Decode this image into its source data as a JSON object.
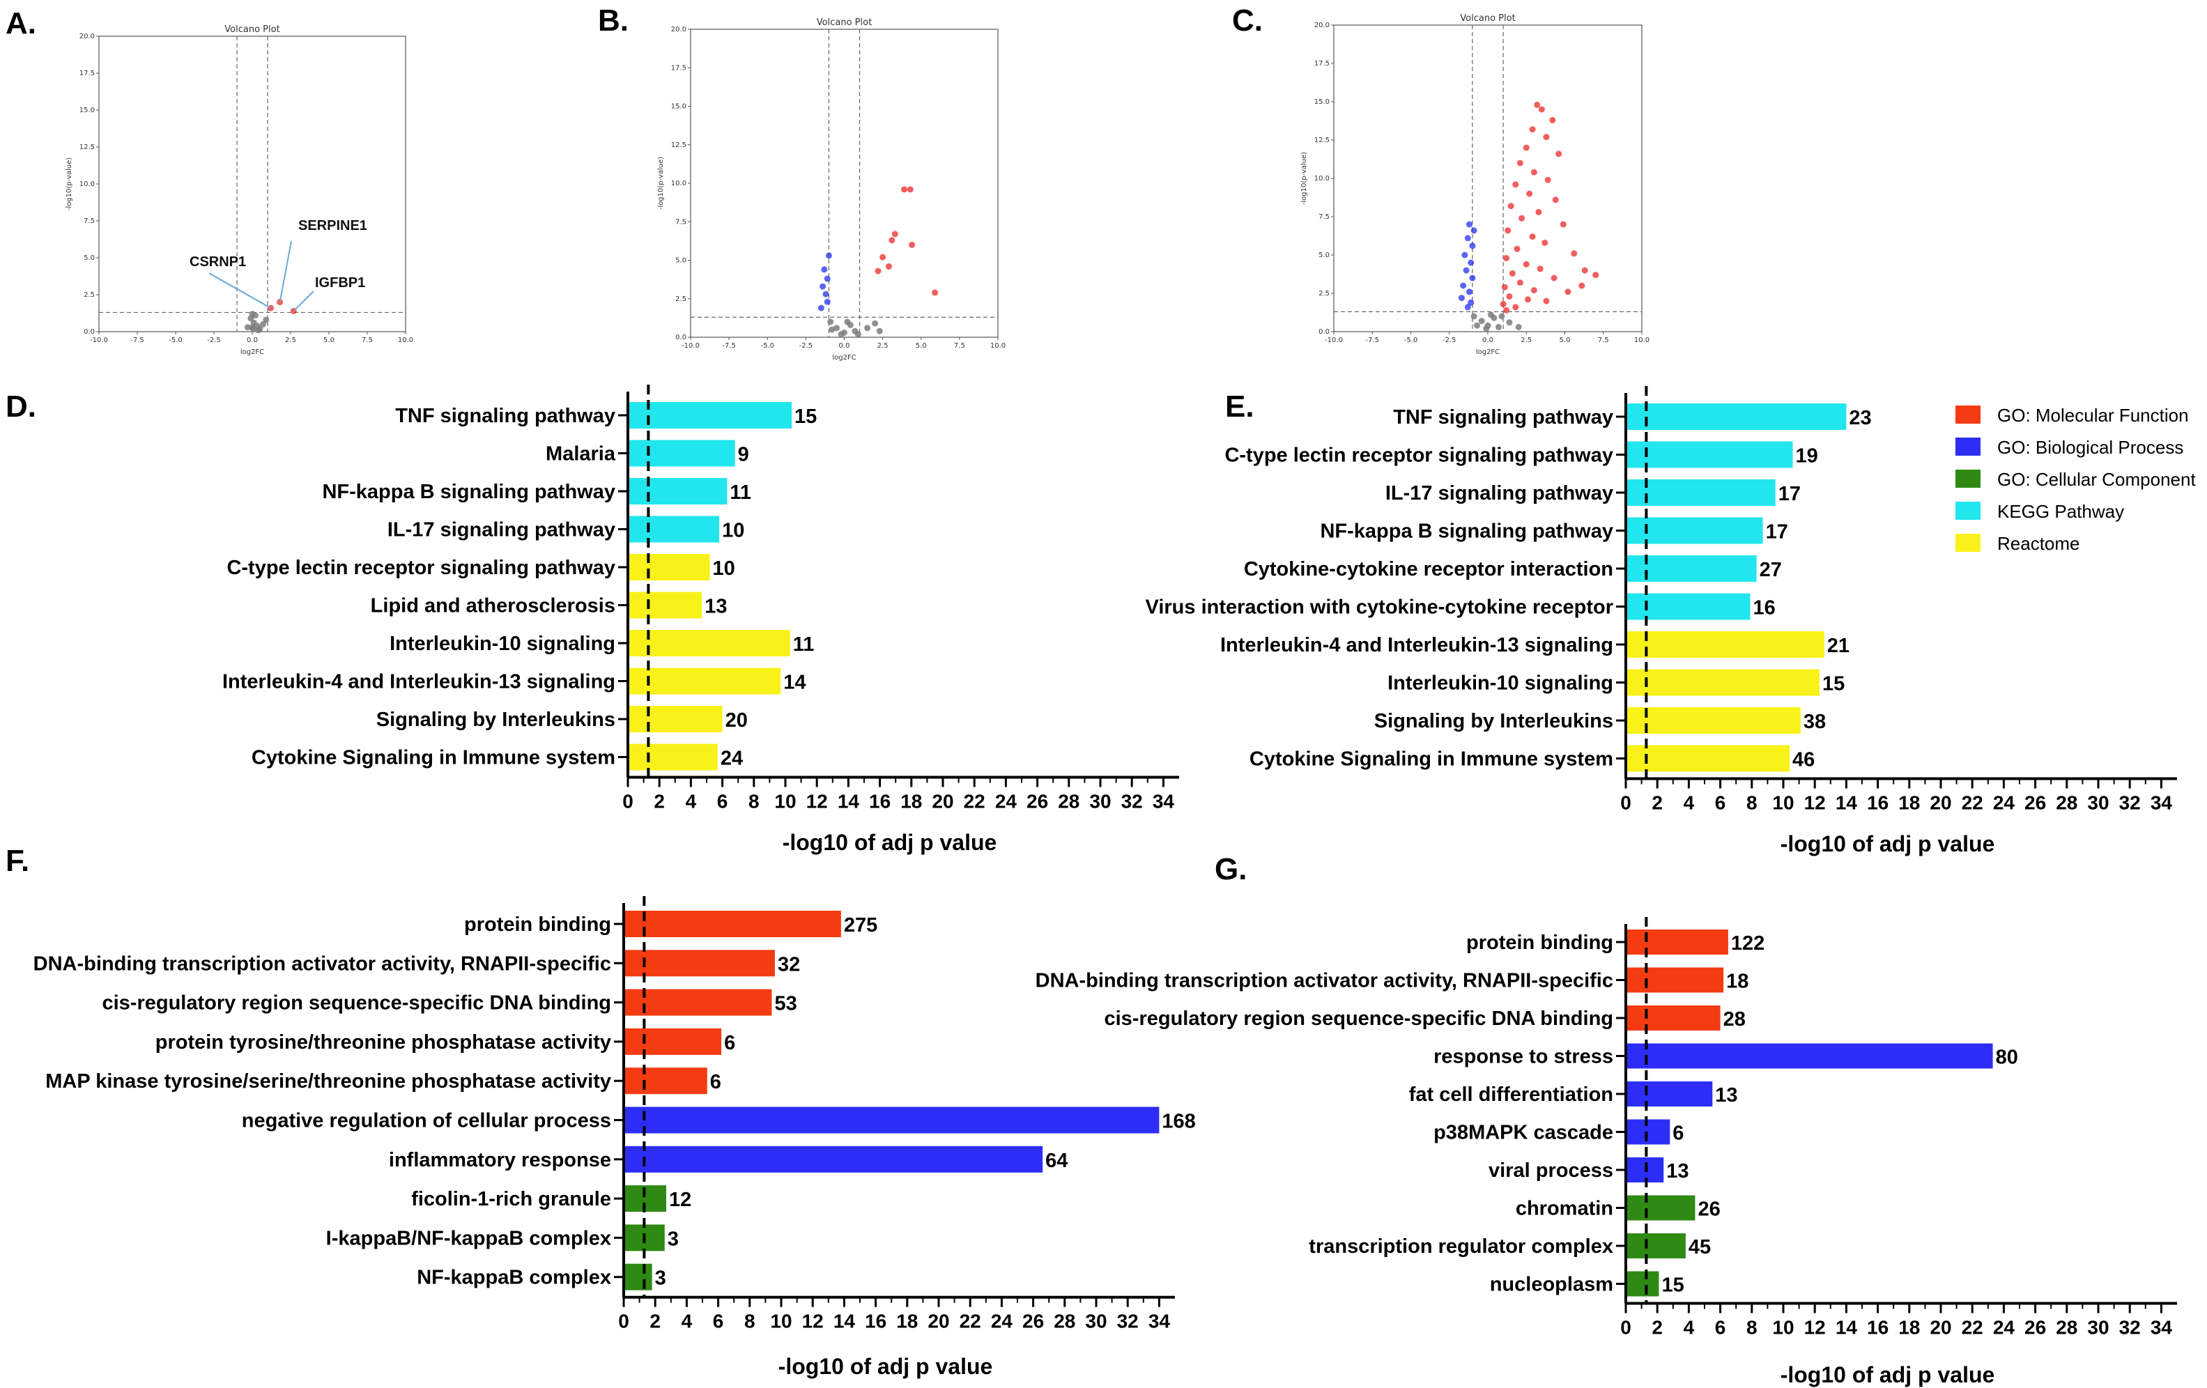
{
  "colors": {
    "mf": "#f43b12",
    "bp": "#2d2ef5",
    "cc": "#2e8a12",
    "kegg": "#22e6ee",
    "reactome": "#f8f21a",
    "down_point": "#2430ee",
    "up_point": "#ee2828",
    "ns_point": "#7c7c7c"
  },
  "legend": [
    {
      "key": "mf",
      "label": "GO: Molecular Function"
    },
    {
      "key": "bp",
      "label": "GO: Biological Process"
    },
    {
      "key": "cc",
      "label": "GO: Cellular Component"
    },
    {
      "key": "kegg",
      "label": "KEGG Pathway"
    },
    {
      "key": "reactome",
      "label": "Reactome"
    }
  ],
  "chart_data": [
    {
      "id": "A",
      "panel_label": "A.",
      "type": "scatter",
      "title": "Volcano Plot",
      "xlabel": "log2FC",
      "ylabel": "-log10(p-value)",
      "xlim": [
        -10,
        10
      ],
      "ylim": [
        0,
        20
      ],
      "xticks": [
        "-10.0",
        "-7.5",
        "-5.0",
        "-2.5",
        "0.0",
        "2.5",
        "5.0",
        "7.5",
        "10.0"
      ],
      "yticks": [
        "0.0",
        "2.5",
        "5.0",
        "7.5",
        "10.0",
        "12.5",
        "15.0",
        "17.5",
        "20.0"
      ],
      "vlines": [
        -1,
        1
      ],
      "hline": 1.3,
      "annotations": [
        {
          "label": "CSRNP1",
          "x": 1.2,
          "y": 1.6
        },
        {
          "label": "SERPINE1",
          "x": 1.8,
          "y": 2.0
        },
        {
          "label": "IGFBP1",
          "x": 2.7,
          "y": 1.4
        }
      ],
      "up": [
        {
          "x": 1.2,
          "y": 1.6
        },
        {
          "x": 1.8,
          "y": 2.0
        },
        {
          "x": 2.7,
          "y": 1.4
        }
      ],
      "down": [],
      "ns": [
        {
          "x": 0.0,
          "y": 0.3
        },
        {
          "x": 0.1,
          "y": 0.6
        },
        {
          "x": -0.1,
          "y": 0.9
        },
        {
          "x": 0.0,
          "y": 1.2
        },
        {
          "x": 0.05,
          "y": 0.2
        },
        {
          "x": 0.3,
          "y": 0.4
        },
        {
          "x": 0.5,
          "y": 0.2
        },
        {
          "x": 0.7,
          "y": 0.5
        },
        {
          "x": -0.3,
          "y": 0.3
        },
        {
          "x": 0.9,
          "y": 0.8
        },
        {
          "x": 0.4,
          "y": 0.1
        },
        {
          "x": 0.2,
          "y": 1.1
        }
      ]
    },
    {
      "id": "B",
      "panel_label": "B.",
      "type": "scatter",
      "title": "Volcano Plot",
      "xlabel": "log2FC",
      "ylabel": "-log10(p-value)",
      "xlim": [
        -10,
        10
      ],
      "ylim": [
        0,
        20
      ],
      "xticks": [
        "-10.0",
        "-7.5",
        "-5.0",
        "-2.5",
        "0.0",
        "2.5",
        "5.0",
        "7.5",
        "10.0"
      ],
      "yticks": [
        "0.0",
        "2.5",
        "5.0",
        "7.5",
        "10.0",
        "12.5",
        "15.0",
        "17.5",
        "20.0"
      ],
      "vlines": [
        -1,
        1
      ],
      "hline": 1.3,
      "annotations": [],
      "up": [
        {
          "x": 3.9,
          "y": 9.6
        },
        {
          "x": 4.3,
          "y": 9.6
        },
        {
          "x": 3.3,
          "y": 6.7
        },
        {
          "x": 3.1,
          "y": 6.3
        },
        {
          "x": 4.4,
          "y": 6.0
        },
        {
          "x": 5.9,
          "y": 2.9
        },
        {
          "x": 2.5,
          "y": 5.2
        },
        {
          "x": 2.9,
          "y": 4.6
        },
        {
          "x": 2.2,
          "y": 4.3
        }
      ],
      "down": [
        {
          "x": -1.0,
          "y": 5.3
        },
        {
          "x": -1.3,
          "y": 4.4
        },
        {
          "x": -1.1,
          "y": 3.8
        },
        {
          "x": -1.4,
          "y": 3.3
        },
        {
          "x": -1.2,
          "y": 2.8
        },
        {
          "x": -1.1,
          "y": 2.3
        },
        {
          "x": -1.5,
          "y": 1.9
        }
      ],
      "ns": [
        {
          "x": 0.0,
          "y": 0.3
        },
        {
          "x": -0.5,
          "y": 0.6
        },
        {
          "x": 0.4,
          "y": 0.8
        },
        {
          "x": 0.7,
          "y": 0.4
        },
        {
          "x": -0.8,
          "y": 0.5
        },
        {
          "x": 0.2,
          "y": 1.0
        },
        {
          "x": 1.5,
          "y": 0.6
        },
        {
          "x": 2.3,
          "y": 0.4
        },
        {
          "x": 2.0,
          "y": 0.9
        },
        {
          "x": -0.2,
          "y": 0.2
        },
        {
          "x": 0.9,
          "y": 0.2
        },
        {
          "x": -0.9,
          "y": 1.0
        }
      ]
    },
    {
      "id": "C",
      "panel_label": "C.",
      "type": "scatter",
      "title": "Volcano Plot",
      "xlabel": "log2FC",
      "ylabel": "-log10(p-value)",
      "xlim": [
        -10,
        10
      ],
      "ylim": [
        0,
        20
      ],
      "xticks": [
        "-10.0",
        "-7.5",
        "-5.0",
        "-2.5",
        "0.0",
        "2.5",
        "5.0",
        "7.5",
        "10.0"
      ],
      "yticks": [
        "0.0",
        "2.5",
        "5.0",
        "7.5",
        "10.0",
        "12.5",
        "15.0",
        "17.5",
        "20.0"
      ],
      "vlines": [
        -1,
        1
      ],
      "hline": 1.3,
      "annotations": [],
      "up": [
        {
          "x": 3.2,
          "y": 14.8
        },
        {
          "x": 3.5,
          "y": 14.5
        },
        {
          "x": 4.2,
          "y": 13.8
        },
        {
          "x": 2.9,
          "y": 13.2
        },
        {
          "x": 3.8,
          "y": 12.7
        },
        {
          "x": 2.5,
          "y": 12.0
        },
        {
          "x": 4.6,
          "y": 11.6
        },
        {
          "x": 2.1,
          "y": 11.0
        },
        {
          "x": 3.0,
          "y": 10.4
        },
        {
          "x": 3.9,
          "y": 9.9
        },
        {
          "x": 1.8,
          "y": 9.6
        },
        {
          "x": 2.7,
          "y": 9.0
        },
        {
          "x": 4.4,
          "y": 8.6
        },
        {
          "x": 1.5,
          "y": 8.2
        },
        {
          "x": 3.3,
          "y": 7.8
        },
        {
          "x": 2.2,
          "y": 7.4
        },
        {
          "x": 4.9,
          "y": 7.0
        },
        {
          "x": 1.3,
          "y": 6.6
        },
        {
          "x": 2.9,
          "y": 6.2
        },
        {
          "x": 3.7,
          "y": 5.8
        },
        {
          "x": 1.9,
          "y": 5.4
        },
        {
          "x": 5.6,
          "y": 5.1
        },
        {
          "x": 1.2,
          "y": 4.8
        },
        {
          "x": 2.5,
          "y": 4.4
        },
        {
          "x": 3.4,
          "y": 4.1
        },
        {
          "x": 6.3,
          "y": 4.0
        },
        {
          "x": 1.6,
          "y": 3.8
        },
        {
          "x": 4.3,
          "y": 3.5
        },
        {
          "x": 7.0,
          "y": 3.7
        },
        {
          "x": 2.1,
          "y": 3.2
        },
        {
          "x": 1.1,
          "y": 2.9
        },
        {
          "x": 3.0,
          "y": 2.7
        },
        {
          "x": 5.2,
          "y": 2.6
        },
        {
          "x": 1.4,
          "y": 2.3
        },
        {
          "x": 2.6,
          "y": 2.1
        },
        {
          "x": 1.0,
          "y": 1.8
        },
        {
          "x": 1.8,
          "y": 1.6
        },
        {
          "x": 3.8,
          "y": 2.0
        },
        {
          "x": 6.1,
          "y": 3.0
        },
        {
          "x": 1.2,
          "y": 1.4
        }
      ],
      "down": [
        {
          "x": -1.2,
          "y": 7.0
        },
        {
          "x": -0.9,
          "y": 6.6
        },
        {
          "x": -1.3,
          "y": 6.1
        },
        {
          "x": -1.0,
          "y": 5.6
        },
        {
          "x": -1.5,
          "y": 5.0
        },
        {
          "x": -1.1,
          "y": 4.5
        },
        {
          "x": -1.4,
          "y": 4.0
        },
        {
          "x": -1.0,
          "y": 3.5
        },
        {
          "x": -1.6,
          "y": 3.0
        },
        {
          "x": -1.2,
          "y": 2.6
        },
        {
          "x": -1.7,
          "y": 2.2
        },
        {
          "x": -1.1,
          "y": 1.9
        },
        {
          "x": -1.3,
          "y": 1.6
        }
      ],
      "ns": [
        {
          "x": 0.0,
          "y": 0.4
        },
        {
          "x": -0.4,
          "y": 0.7
        },
        {
          "x": 0.4,
          "y": 0.9
        },
        {
          "x": 0.7,
          "y": 0.3
        },
        {
          "x": -0.7,
          "y": 0.4
        },
        {
          "x": 0.2,
          "y": 1.1
        },
        {
          "x": 1.4,
          "y": 0.6
        },
        {
          "x": 2.0,
          "y": 0.3
        },
        {
          "x": -0.1,
          "y": 0.2
        },
        {
          "x": -0.9,
          "y": 1.0
        },
        {
          "x": 0.9,
          "y": 1.0
        }
      ]
    },
    {
      "id": "D",
      "panel_label": "D.",
      "type": "bar",
      "xlabel": "-log10 of adj p value",
      "xlim": [
        0,
        35
      ],
      "xticks": [
        "0",
        "2",
        "4",
        "6",
        "8",
        "10",
        "12",
        "14",
        "16",
        "18",
        "20",
        "22",
        "24",
        "26",
        "28",
        "30",
        "32",
        "34"
      ],
      "threshold": 1.3,
      "categories": [
        "TNF signaling pathway",
        "Malaria",
        "NF-kappa B signaling pathway",
        "IL-17 signaling pathway",
        "C-type lectin receptor signaling pathway",
        "Lipid and atherosclerosis",
        "Interleukin-10 signaling",
        "Interleukin-4 and Interleukin-13 signaling",
        "Signaling by Interleukins",
        "Cytokine Signaling in Immune system"
      ],
      "values": [
        10.4,
        6.8,
        6.3,
        5.8,
        5.2,
        4.7,
        10.3,
        9.7,
        6.0,
        5.7
      ],
      "labels": [
        "15",
        "9",
        "11",
        "10",
        "10",
        "13",
        "11",
        "14",
        "20",
        "24"
      ],
      "sources": [
        "kegg",
        "kegg",
        "kegg",
        "kegg",
        "reactome",
        "reactome",
        "reactome",
        "reactome",
        "reactome",
        "reactome"
      ]
    },
    {
      "id": "E",
      "panel_label": "E.",
      "type": "bar",
      "xlabel": "-log10 of adj p value",
      "xlim": [
        0,
        35
      ],
      "xticks": [
        "0",
        "2",
        "4",
        "6",
        "8",
        "10",
        "12",
        "14",
        "16",
        "18",
        "20",
        "22",
        "24",
        "26",
        "28",
        "30",
        "32",
        "34"
      ],
      "threshold": 1.3,
      "categories": [
        "TNF signaling pathway",
        "C-type lectin receptor signaling pathway",
        "IL-17 signaling pathway",
        "NF-kappa B signaling pathway",
        "Cytokine-cytokine receptor interaction",
        "Virus interaction with cytokine-cytokine receptor",
        "Interleukin-4 and Interleukin-13 signaling",
        "Interleukin-10 signaling",
        "Signaling by Interleukins",
        "Cytokine Signaling in Immune system"
      ],
      "values": [
        14.0,
        10.6,
        9.5,
        8.7,
        8.3,
        7.9,
        12.6,
        12.3,
        11.1,
        10.4
      ],
      "labels": [
        "23",
        "19",
        "17",
        "17",
        "27",
        "16",
        "21",
        "15",
        "38",
        "46"
      ],
      "sources": [
        "kegg",
        "kegg",
        "kegg",
        "kegg",
        "kegg",
        "kegg",
        "reactome",
        "reactome",
        "reactome",
        "reactome"
      ]
    },
    {
      "id": "F",
      "panel_label": "F.",
      "type": "bar",
      "xlabel": "-log10 of adj p value",
      "xlim": [
        0,
        35
      ],
      "xticks": [
        "0",
        "2",
        "4",
        "6",
        "8",
        "10",
        "12",
        "14",
        "16",
        "18",
        "20",
        "22",
        "24",
        "26",
        "28",
        "30",
        "32",
        "34"
      ],
      "threshold": 1.3,
      "categories": [
        "protein binding",
        "DNA-binding transcription activator activity, RNAPII-specific",
        "cis-regulatory region sequence-specific DNA binding",
        "protein tyrosine/threonine phosphatase activity",
        "MAP kinase tyrosine/serine/threonine phosphatase activity",
        "negative regulation of cellular process",
        "inflammatory response",
        "ficolin-1-rich granule",
        "I-kappaB/NF-kappaB complex",
        "NF-kappaB complex"
      ],
      "values": [
        13.8,
        9.6,
        9.4,
        6.2,
        5.3,
        34.0,
        26.6,
        2.7,
        2.6,
        1.8
      ],
      "labels": [
        "275",
        "32",
        "53",
        "6",
        "6",
        "168",
        "64",
        "12",
        "3",
        "3"
      ],
      "sources": [
        "mf",
        "mf",
        "mf",
        "mf",
        "mf",
        "bp",
        "bp",
        "cc",
        "cc",
        "cc"
      ]
    },
    {
      "id": "G",
      "panel_label": "G.",
      "type": "bar",
      "xlabel": "-log10 of adj p value",
      "xlim": [
        0,
        35
      ],
      "xticks": [
        "0",
        "2",
        "4",
        "6",
        "8",
        "10",
        "12",
        "14",
        "16",
        "18",
        "20",
        "22",
        "24",
        "26",
        "28",
        "30",
        "32",
        "34"
      ],
      "threshold": 1.3,
      "categories": [
        "protein binding",
        "DNA-binding transcription activator activity, RNAPII-specific",
        "cis-regulatory region sequence-specific DNA binding",
        "response to stress",
        "fat cell differentiation",
        "p38MAPK cascade",
        "viral process",
        "chromatin",
        "transcription regulator complex",
        "nucleoplasm"
      ],
      "values": [
        6.5,
        6.2,
        6.0,
        23.3,
        5.5,
        2.8,
        2.4,
        4.4,
        3.8,
        2.1
      ],
      "labels": [
        "122",
        "18",
        "28",
        "80",
        "13",
        "6",
        "13",
        "26",
        "45",
        "15"
      ],
      "sources": [
        "mf",
        "mf",
        "mf",
        "bp",
        "bp",
        "bp",
        "bp",
        "cc",
        "cc",
        "cc"
      ]
    }
  ]
}
